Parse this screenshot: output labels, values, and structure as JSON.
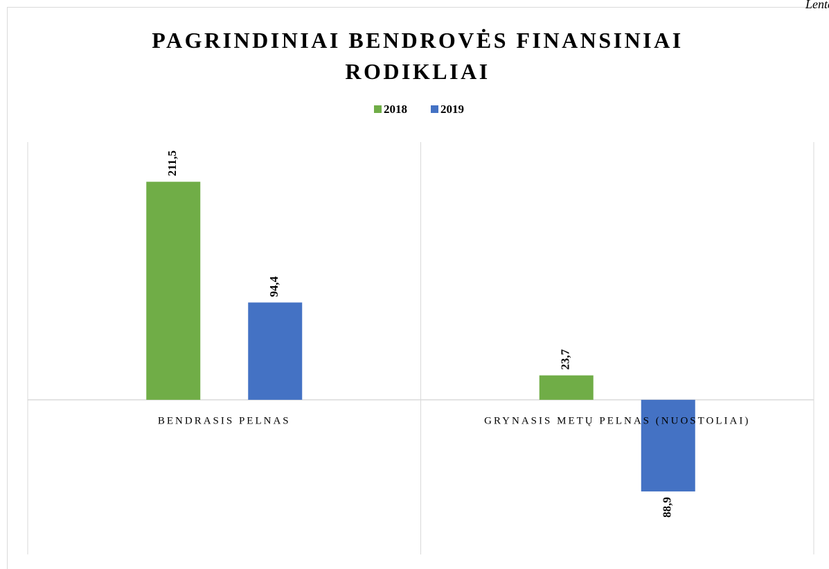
{
  "corner_text": "Lentė",
  "chart_data": {
    "type": "bar",
    "title": "PAGRINDINIAI BENDROVĖS FINANSINIAI RODIKLIAI",
    "categories": [
      "BENDRASIS PELNAS",
      "GRYNASIS METŲ PELNAS (NUOSTOLIAI)"
    ],
    "series": [
      {
        "name": "2018",
        "color": "#70ad47",
        "values": [
          211.5,
          23.7
        ],
        "value_labels": [
          "211,5",
          "23,7"
        ]
      },
      {
        "name": "2019",
        "color": "#4472c4",
        "values": [
          94.4,
          -88.9
        ],
        "value_labels": [
          "94,4",
          "88,9"
        ]
      }
    ],
    "ylim": [
      -150,
      250
    ],
    "legend": "top"
  }
}
